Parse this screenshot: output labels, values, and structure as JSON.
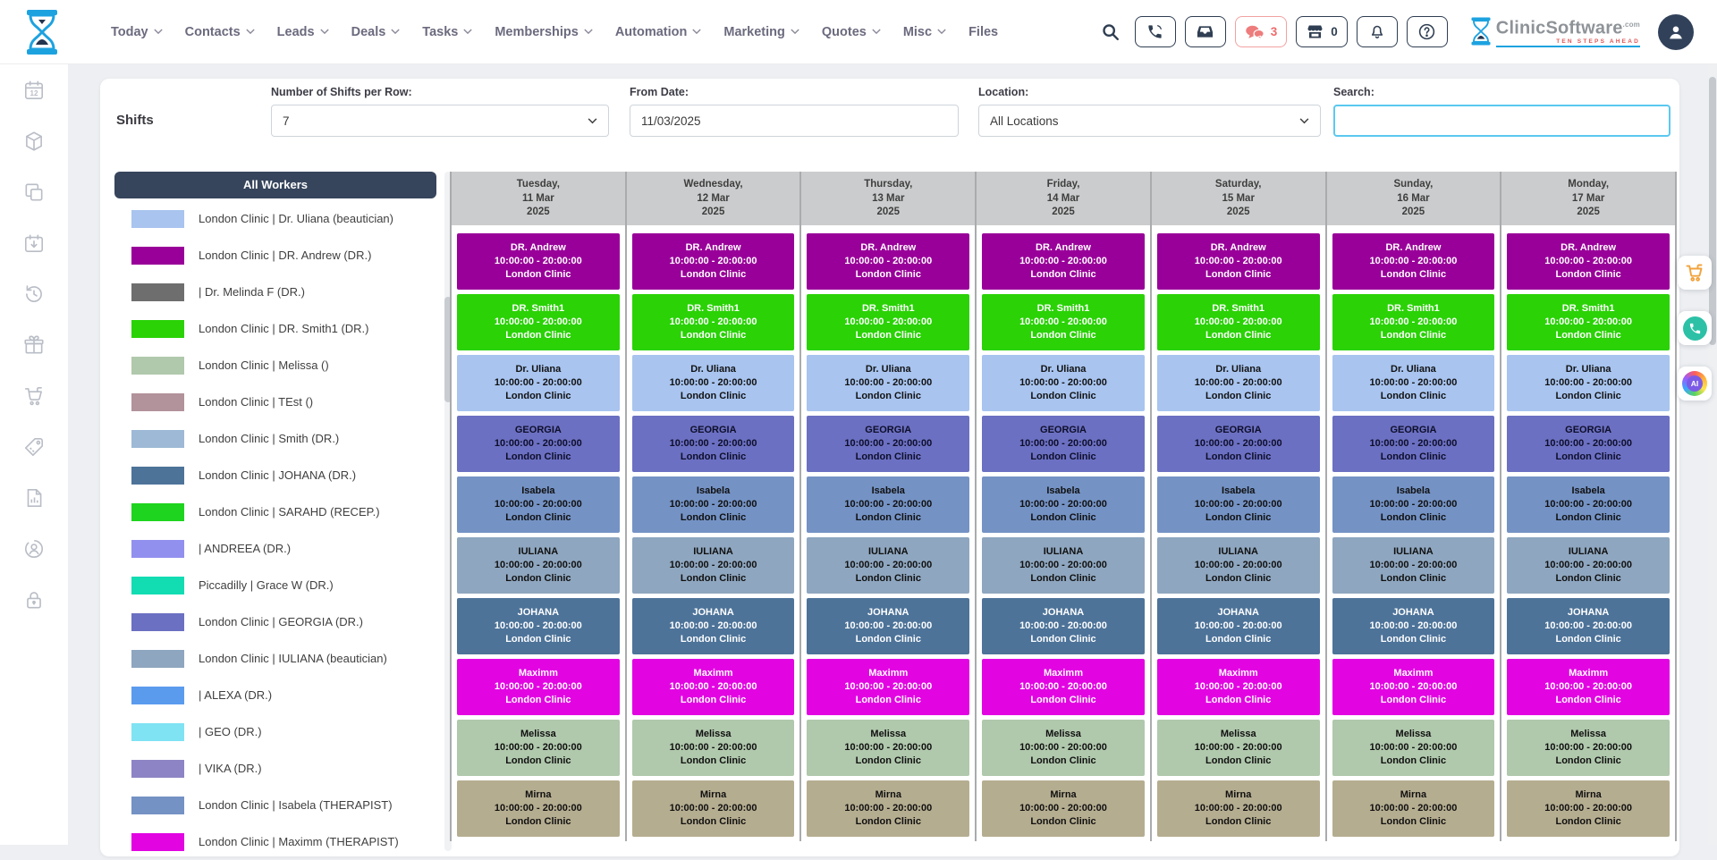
{
  "topbar": {
    "nav": [
      {
        "label": "Today",
        "caret": true
      },
      {
        "label": "Contacts",
        "caret": true
      },
      {
        "label": "Leads",
        "caret": true
      },
      {
        "label": "Deals",
        "caret": true
      },
      {
        "label": "Tasks",
        "caret": true
      },
      {
        "label": "Memberships",
        "caret": true
      },
      {
        "label": "Automation",
        "caret": true
      },
      {
        "label": "Marketing",
        "caret": true
      },
      {
        "label": "Quotes",
        "caret": true
      },
      {
        "label": "Misc",
        "caret": true
      },
      {
        "label": "Files",
        "caret": false
      }
    ],
    "actions": [
      {
        "icon": "phone-icon",
        "badge": "",
        "style": "dark"
      },
      {
        "icon": "inbox-icon",
        "badge": "",
        "style": "dark"
      },
      {
        "icon": "chat-icon",
        "badge": "3",
        "style": "red"
      },
      {
        "icon": "storefront-icon",
        "badge": "0",
        "style": "dark"
      },
      {
        "icon": "bell-icon",
        "badge": "",
        "style": "dark"
      },
      {
        "icon": "help-icon",
        "badge": "",
        "style": "dark"
      }
    ],
    "badge_colors": {
      "red": "#ef6a6a",
      "dark": "#2f3e52"
    },
    "brand": {
      "name": "ClinicSoftware",
      "tld": ".com",
      "tagline": "TEN STEPS AHEAD"
    }
  },
  "sidebar_icons": [
    "calendar-12-icon",
    "package-icon",
    "copy-icon",
    "calendar-import-icon",
    "history-icon",
    "gift-icon",
    "cart-icon",
    "price-tag-icon",
    "report-icon",
    "user-badge-icon",
    "lock-icon"
  ],
  "filters": {
    "panel_title": "Shifts",
    "shifts_per_row": {
      "label": "Number of Shifts per Row:",
      "value": "7"
    },
    "from_date": {
      "label": "From Date:",
      "value": "11/03/2025"
    },
    "location": {
      "label": "Location:",
      "value": "All Locations"
    },
    "search": {
      "label": "Search:",
      "value": "",
      "placeholder": ""
    }
  },
  "workers": {
    "header": "All Workers",
    "items": [
      {
        "label": "London Clinic | Dr. Uliana (beautician)",
        "color": "#a8c4ef"
      },
      {
        "label": "London Clinic | DR. Andrew (DR.)",
        "color": "#990099"
      },
      {
        "label": "| Dr. Melinda F (DR.)",
        "color": "#6e6e6e"
      },
      {
        "label": "London Clinic | DR. Smith1 (DR.)",
        "color": "#2ad206"
      },
      {
        "label": "London Clinic | Melissa ()",
        "color": "#b0c8ac"
      },
      {
        "label": "London Clinic | TEst ()",
        "color": "#b2929b"
      },
      {
        "label": "London Clinic | Smith (DR.)",
        "color": "#9db9d6"
      },
      {
        "label": "London Clinic | JOHANA (DR.)",
        "color": "#4d7399"
      },
      {
        "label": "London Clinic | SARAHD (RECEP.)",
        "color": "#1ed41e"
      },
      {
        "label": "| ANDREEA (DR.)",
        "color": "#9290ee"
      },
      {
        "label": "Piccadilly | Grace W (DR.)",
        "color": "#12dcb2"
      },
      {
        "label": "London Clinic | GEORGIA (DR.)",
        "color": "#6b70c2"
      },
      {
        "label": "London Clinic | IULIANA (beautician)",
        "color": "#8ea6bf"
      },
      {
        "label": "| ALEXA (DR.)",
        "color": "#5b9bee"
      },
      {
        "label": "| GEO (DR.)",
        "color": "#7fe3f3"
      },
      {
        "label": "| VIKA (DR.)",
        "color": "#8d84c5"
      },
      {
        "label": "London Clinic | Isabela (THERAPIST)",
        "color": "#7492c4"
      },
      {
        "label": "London Clinic | Maximm (THERAPIST)",
        "color": "#e205e2"
      }
    ]
  },
  "calendar": {
    "days": [
      {
        "weekday": "Tuesday,",
        "date": "11 Mar",
        "year": "2025"
      },
      {
        "weekday": "Wednesday,",
        "date": "12 Mar",
        "year": "2025"
      },
      {
        "weekday": "Thursday,",
        "date": "13 Mar",
        "year": "2025"
      },
      {
        "weekday": "Friday,",
        "date": "14 Mar",
        "year": "2025"
      },
      {
        "weekday": "Saturday,",
        "date": "15 Mar",
        "year": "2025"
      },
      {
        "weekday": "Sunday,",
        "date": "16 Mar",
        "year": "2025"
      },
      {
        "weekday": "Monday,",
        "date": "17 Mar",
        "year": "2025"
      }
    ],
    "shifts": [
      {
        "name": "DR. Andrew",
        "time": "10:00:00 - 20:00:00",
        "location": "London Clinic",
        "color": "#990099",
        "text": "#ffffff"
      },
      {
        "name": "DR. Smith1",
        "time": "10:00:00 - 20:00:00",
        "location": "London Clinic",
        "color": "#2ad206",
        "text": "#ffffff"
      },
      {
        "name": "Dr. Uliana",
        "time": "10:00:00 - 20:00:00",
        "location": "London Clinic",
        "color": "#a8c4ef",
        "text": "#121212"
      },
      {
        "name": "GEORGIA",
        "time": "10:00:00 - 20:00:00",
        "location": "London Clinic",
        "color": "#6b70c2",
        "text": "#0e0e2a"
      },
      {
        "name": "Isabela",
        "time": "10:00:00 - 20:00:00",
        "location": "London Clinic",
        "color": "#7492c4",
        "text": "#101010"
      },
      {
        "name": "IULIANA",
        "time": "10:00:00 - 20:00:00",
        "location": "London Clinic",
        "color": "#8ea6bf",
        "text": "#101010"
      },
      {
        "name": "JOHANA",
        "time": "10:00:00 - 20:00:00",
        "location": "London Clinic",
        "color": "#4d7399",
        "text": "#ffffff"
      },
      {
        "name": "Maximm",
        "time": "10:00:00 - 20:00:00",
        "location": "London Clinic",
        "color": "#e205e2",
        "text": "#ffffff"
      },
      {
        "name": "Melissa",
        "time": "10:00:00 - 20:00:00",
        "location": "London Clinic",
        "color": "#b0c8ac",
        "text": "#101010"
      },
      {
        "name": "Mirna",
        "time": "10:00:00 - 20:00:00",
        "location": "London Clinic",
        "color": "#b5ad90",
        "text": "#101010"
      }
    ]
  },
  "floating_buttons": [
    {
      "icon": "cart-orange-icon"
    },
    {
      "icon": "phone-teal-icon"
    },
    {
      "icon": "ai-icon",
      "label": "AI"
    }
  ]
}
